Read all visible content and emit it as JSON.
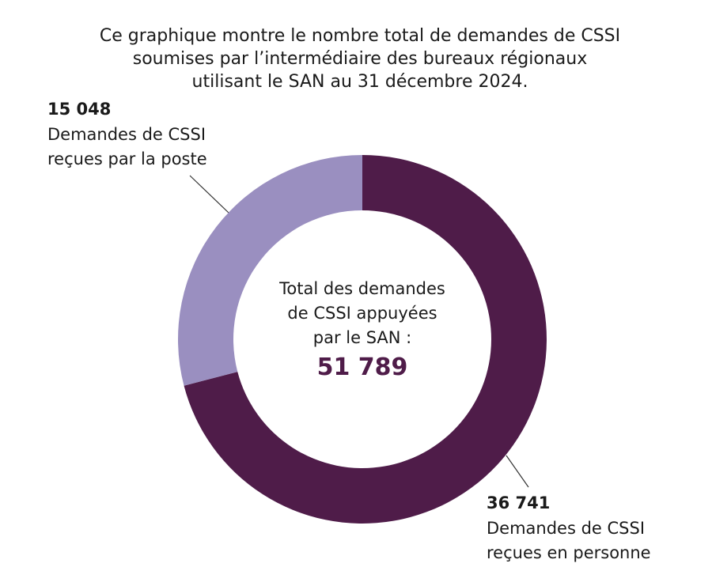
{
  "chart_data": {
    "type": "donut",
    "title": [
      "Ce graphique montre le nombre total de demandes de CSSI",
      "soumises par l’intermédiaire des bureaux régionaux",
      "utilisant le SAN au 31 décembre 2024."
    ],
    "categories": [
      [
        "Demandes de CSSI",
        "reçues en personne"
      ],
      [
        "Demandes de CSSI",
        "reçues par la poste"
      ]
    ],
    "values": [
      36741,
      15048
    ],
    "value_labels": [
      "36 741",
      "15 048"
    ],
    "colors": [
      "#4f1c49",
      "#9a8fc0"
    ],
    "center_label": [
      "Total des demandes",
      "de CSSI appuyées",
      "par le SAN :"
    ],
    "total": {
      "value": 51789,
      "label": "51 789"
    }
  }
}
